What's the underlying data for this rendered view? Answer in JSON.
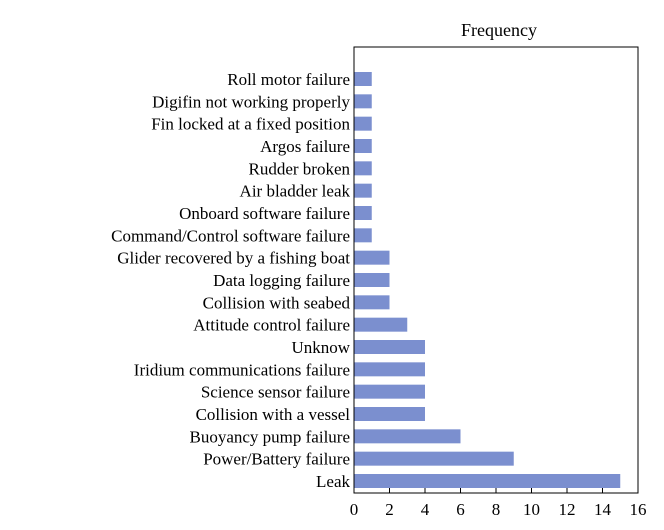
{
  "chart_data": {
    "type": "bar",
    "orientation": "horizontal",
    "title": "Frequency",
    "xlabel": "",
    "ylabel": "",
    "xlim": [
      0,
      16
    ],
    "xticks": [
      0,
      2,
      4,
      6,
      8,
      10,
      12,
      14,
      16
    ],
    "grid": false,
    "bar_color": "#7b8fcf",
    "categories": [
      "Roll motor failure",
      "Digifin not working properly",
      "Fin locked at a fixed position",
      "Argos failure",
      "Rudder broken",
      "Air bladder leak",
      "Onboard software failure",
      "Command/Control software failure",
      "Glider recovered by a fishing boat",
      "Data logging failure",
      "Collision with seabed",
      "Attitude control failure",
      "Unknow",
      "Iridium communications failure",
      "Science sensor failure",
      "Collision with a vessel",
      "Buoyancy pump failure",
      "Power/Battery failure",
      "Leak"
    ],
    "values": [
      1,
      1,
      1,
      1,
      1,
      1,
      1,
      1,
      2,
      2,
      2,
      3,
      4,
      4,
      4,
      4,
      6,
      9,
      15
    ]
  }
}
